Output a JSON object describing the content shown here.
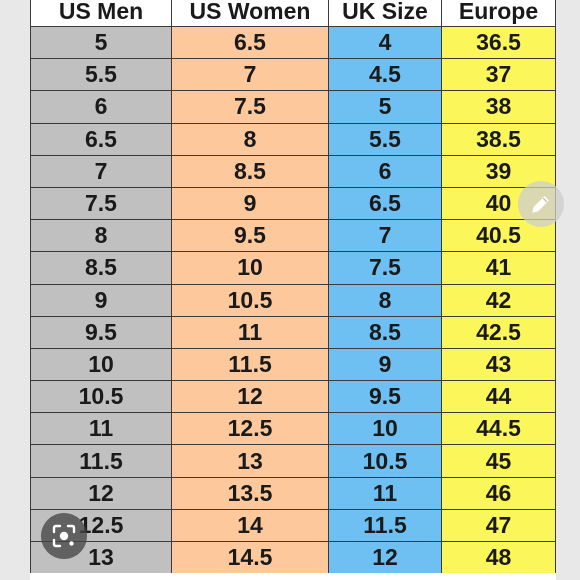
{
  "table": {
    "headers": [
      "US Men",
      "US Women",
      "UK Size",
      "Europe"
    ],
    "rows": [
      [
        "5",
        "6.5",
        "4",
        "36.5"
      ],
      [
        "5.5",
        "7",
        "4.5",
        "37"
      ],
      [
        "6",
        "7.5",
        "5",
        "38"
      ],
      [
        "6.5",
        "8",
        "5.5",
        "38.5"
      ],
      [
        "7",
        "8.5",
        "6",
        "39"
      ],
      [
        "7.5",
        "9",
        "6.5",
        "40"
      ],
      [
        "8",
        "9.5",
        "7",
        "40.5"
      ],
      [
        "8.5",
        "10",
        "7.5",
        "41"
      ],
      [
        "9",
        "10.5",
        "8",
        "42"
      ],
      [
        "9.5",
        "11",
        "8.5",
        "42.5"
      ],
      [
        "10",
        "11.5",
        "9",
        "43"
      ],
      [
        "10.5",
        "12",
        "9.5",
        "44"
      ],
      [
        "11",
        "12.5",
        "10",
        "44.5"
      ],
      [
        "11.5",
        "13",
        "10.5",
        "45"
      ],
      [
        "12",
        "13.5",
        "11",
        "46"
      ],
      [
        "12.5",
        "14",
        "11.5",
        "47"
      ],
      [
        "13",
        "14.5",
        "12",
        "48"
      ]
    ]
  },
  "column_colors": {
    "us_men": "#c0c0c0",
    "us_women": "#fcc89c",
    "uk_size": "#6ec0f2",
    "europe": "#fbf65a"
  },
  "overlay_buttons": {
    "edit": {
      "icon": "pencil-icon"
    },
    "visual_search": {
      "icon": "lens-icon"
    }
  }
}
